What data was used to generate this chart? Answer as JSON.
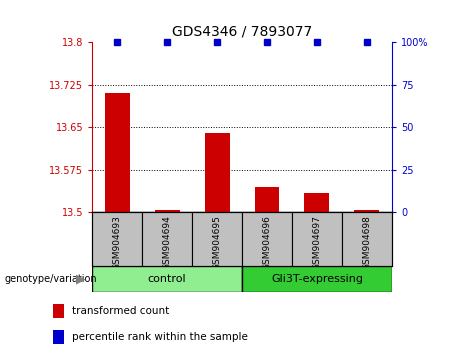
{
  "title": "GDS4346 / 7893077",
  "samples": [
    "GSM904693",
    "GSM904694",
    "GSM904695",
    "GSM904696",
    "GSM904697",
    "GSM904698"
  ],
  "red_values": [
    13.71,
    13.505,
    13.64,
    13.545,
    13.535,
    13.505
  ],
  "blue_values": [
    100,
    100,
    100,
    100,
    100,
    100
  ],
  "ylim_left": [
    13.5,
    13.8
  ],
  "ylim_right": [
    0,
    100
  ],
  "yticks_left": [
    13.5,
    13.575,
    13.65,
    13.725,
    13.8
  ],
  "yticks_right": [
    0,
    25,
    50,
    75,
    100
  ],
  "ytick_labels_left": [
    "13.5",
    "13.575",
    "13.65",
    "13.725",
    "13.8"
  ],
  "ytick_labels_right": [
    "0",
    "25",
    "50",
    "75",
    "100%"
  ],
  "groups": [
    {
      "label": "control",
      "indices": [
        0,
        1,
        2
      ],
      "color": "#90EE90"
    },
    {
      "label": "Gli3T-expressing",
      "indices": [
        3,
        4,
        5
      ],
      "color": "#33CC33"
    }
  ],
  "bar_width": 0.5,
  "red_color": "#CC0000",
  "blue_color": "#0000CC",
  "bg_label_row": "#C0C0C0",
  "legend_red": "transformed count",
  "legend_blue": "percentile rank within the sample",
  "genotype_label": "genotype/variation",
  "left_tick_color": "#CC0000",
  "right_tick_color": "#0000CC",
  "fig_width": 4.61,
  "fig_height": 3.54,
  "dpi": 100
}
